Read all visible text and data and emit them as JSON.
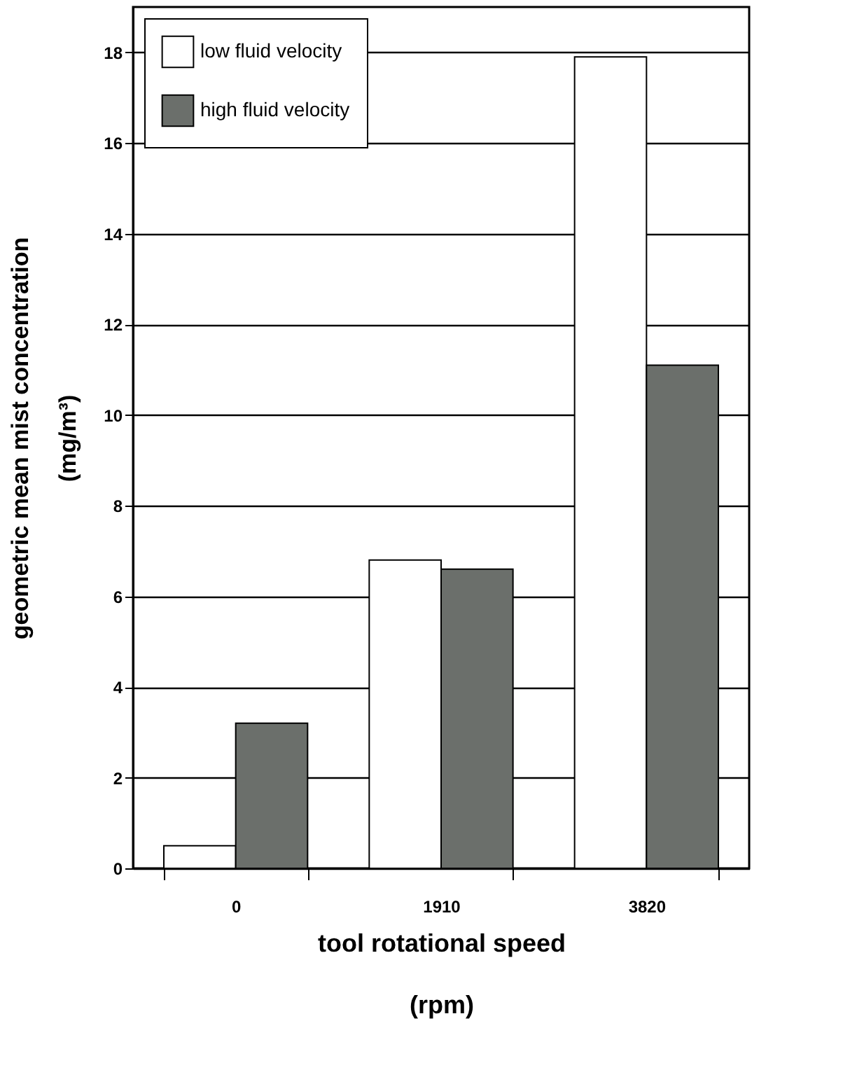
{
  "chart_data": {
    "type": "bar",
    "xlabel": "tool rotational speed\n(rpm)",
    "ylabel": "geometric mean mist concentration\n(mg/m³)",
    "categories": [
      "0",
      "1910",
      "3820"
    ],
    "series": [
      {
        "name": "low fluid velocity",
        "color": "#ffffff",
        "values": [
          0.5,
          6.8,
          17.9
        ]
      },
      {
        "name": "high fluid velocity",
        "color": "#6b6f6b",
        "values": [
          3.2,
          6.6,
          11.1
        ]
      }
    ],
    "ylim": [
      0,
      19
    ],
    "yticks": [
      0,
      2,
      4,
      6,
      8,
      10,
      12,
      14,
      16,
      18
    ],
    "grid": "y",
    "legend": "top left"
  }
}
